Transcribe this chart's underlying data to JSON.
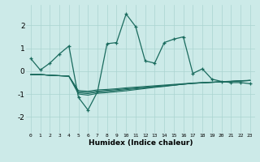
{
  "xlabel": "Humidex (Indice chaleur)",
  "bg_color": "#cceae8",
  "line_color": "#1a6b5e",
  "grid_color": "#aad4d0",
  "xlim": [
    -0.5,
    23.5
  ],
  "ylim": [
    -2.7,
    2.9
  ],
  "yticks": [
    -2,
    -1,
    0,
    1,
    2
  ],
  "xticks": [
    0,
    1,
    2,
    3,
    4,
    5,
    6,
    7,
    8,
    9,
    10,
    11,
    12,
    13,
    14,
    15,
    16,
    17,
    18,
    19,
    20,
    21,
    22,
    23
  ],
  "line1_x": [
    0,
    1,
    2,
    3,
    4,
    5,
    6,
    7,
    8,
    9,
    10,
    11,
    12,
    13,
    14,
    15,
    16,
    17,
    18,
    19,
    20,
    21,
    22,
    23
  ],
  "line1_y": [
    0.55,
    0.05,
    0.35,
    0.75,
    1.1,
    -1.15,
    -1.7,
    -0.9,
    1.2,
    1.25,
    2.5,
    1.95,
    0.45,
    0.35,
    1.25,
    1.4,
    1.5,
    -0.1,
    0.1,
    -0.35,
    -0.45,
    -0.5,
    -0.5,
    -0.55
  ],
  "line2_x": [
    0,
    1,
    2,
    3,
    4,
    5,
    6,
    7,
    8,
    9,
    10,
    11,
    12,
    13,
    14,
    15,
    16,
    17,
    18,
    19,
    20,
    21,
    22,
    23
  ],
  "line2_y": [
    -0.15,
    -0.15,
    -0.18,
    -0.2,
    -0.22,
    -0.85,
    -0.88,
    -0.82,
    -0.8,
    -0.77,
    -0.73,
    -0.7,
    -0.67,
    -0.64,
    -0.61,
    -0.58,
    -0.55,
    -0.52,
    -0.5,
    -0.48,
    -0.46,
    -0.44,
    -0.42,
    -0.4
  ],
  "line3_x": [
    0,
    1,
    2,
    3,
    4,
    5,
    6,
    7,
    8,
    9,
    10,
    11,
    12,
    13,
    14,
    15,
    16,
    17,
    18,
    19,
    20,
    21,
    22,
    23
  ],
  "line3_y": [
    -0.15,
    -0.15,
    -0.18,
    -0.2,
    -0.22,
    -0.9,
    -0.93,
    -0.87,
    -0.84,
    -0.81,
    -0.77,
    -0.74,
    -0.71,
    -0.67,
    -0.64,
    -0.61,
    -0.57,
    -0.54,
    -0.51,
    -0.49,
    -0.47,
    -0.45,
    -0.43,
    -0.41
  ],
  "line4_x": [
    0,
    1,
    2,
    3,
    4,
    5,
    6,
    7,
    8,
    9,
    10,
    11,
    12,
    13,
    14,
    15,
    16,
    17,
    18,
    19,
    20,
    21,
    22,
    23
  ],
  "line4_y": [
    -0.15,
    -0.15,
    -0.18,
    -0.2,
    -0.22,
    -0.95,
    -0.98,
    -0.92,
    -0.89,
    -0.85,
    -0.81,
    -0.77,
    -0.73,
    -0.69,
    -0.65,
    -0.61,
    -0.57,
    -0.53,
    -0.51,
    -0.49,
    -0.47,
    -0.45,
    -0.43,
    -0.41
  ],
  "line5_x": [
    0,
    1,
    2,
    3,
    4,
    5,
    6,
    7,
    8,
    9,
    10,
    11,
    12,
    13,
    14,
    15,
    16,
    17,
    18,
    19,
    20,
    21,
    22,
    23
  ],
  "line5_y": [
    -0.15,
    -0.15,
    -0.18,
    -0.2,
    -0.22,
    -1.0,
    -1.05,
    -0.97,
    -0.94,
    -0.9,
    -0.86,
    -0.81,
    -0.76,
    -0.71,
    -0.67,
    -0.62,
    -0.57,
    -0.53,
    -0.51,
    -0.49,
    -0.47,
    -0.45,
    -0.43,
    -0.41
  ]
}
